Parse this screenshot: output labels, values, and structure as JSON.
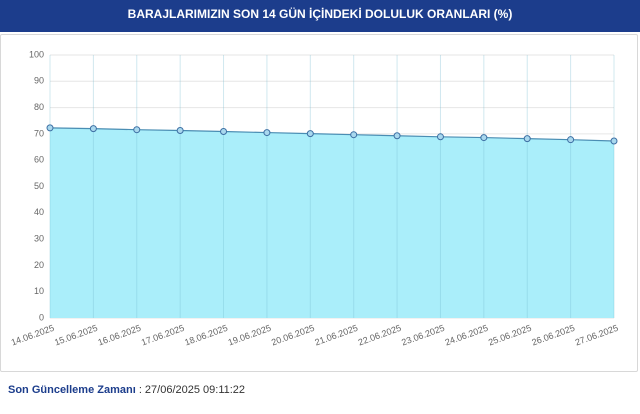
{
  "chart_data": {
    "type": "line",
    "title": "BARAJLARIMIZIN SON 14 GÜN İÇİNDEKİ DOLULUK ORANLARI (%)",
    "categories": [
      "14.06.2025",
      "15.06.2025",
      "16.06.2025",
      "17.06.2025",
      "18.06.2025",
      "19.06.2025",
      "20.06.2025",
      "21.06.2025",
      "22.06.2025",
      "23.06.2025",
      "24.06.2025",
      "25.06.2025",
      "26.06.2025",
      "27.06.2025"
    ],
    "values": [
      72.3,
      72.0,
      71.6,
      71.3,
      70.9,
      70.5,
      70.1,
      69.7,
      69.3,
      68.9,
      68.6,
      68.2,
      67.8,
      67.3
    ],
    "color": "#4a8db3",
    "area": true,
    "area_color": "#aaeefa",
    "ylim": [
      0,
      100
    ],
    "yticks": [
      0,
      10,
      20,
      30,
      40,
      50,
      60,
      70,
      80,
      90,
      100
    ],
    "grid": true
  },
  "footer": {
    "label": "Son Güncelleme Zamanı",
    "value": " : 27/06/2025 09:11:22"
  }
}
